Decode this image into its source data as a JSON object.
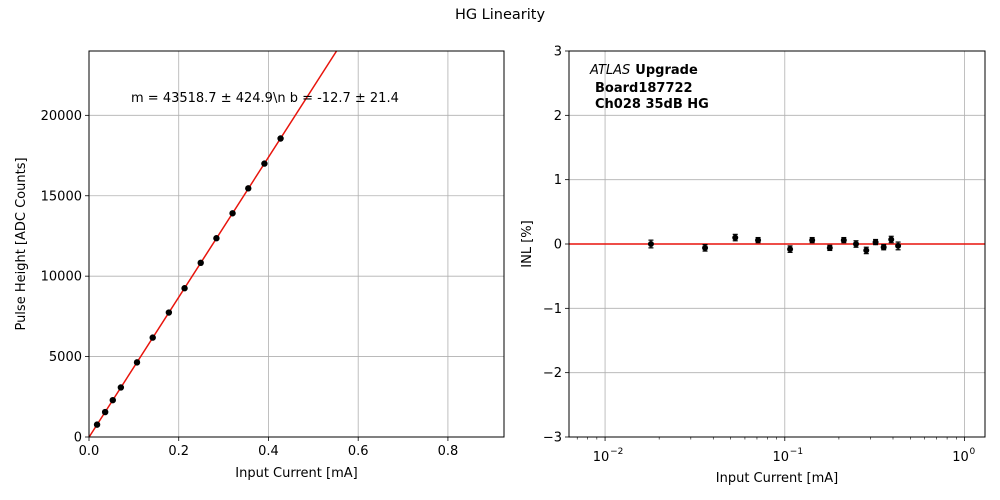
{
  "figure": {
    "title": "HG Linearity"
  },
  "chart_data": [
    {
      "type": "scatter",
      "xlabel": "Input Current [mA]",
      "ylabel": "Pulse Height [ADC Counts]",
      "xlim": [
        0,
        0.925
      ],
      "ylim": [
        0,
        24000
      ],
      "x_ticks": [
        0,
        0.2,
        0.4,
        0.6,
        0.8
      ],
      "x_tick_labels": [
        "0.0",
        "0.2",
        "0.4",
        "0.6",
        "0.8"
      ],
      "y_ticks": [
        0,
        5000,
        10000,
        15000,
        20000
      ],
      "y_tick_labels": [
        "0",
        "5000",
        "10000",
        "15000",
        "20000"
      ],
      "grid": true,
      "series": [
        {
          "x": [
            0.018,
            0.036,
            0.053,
            0.071,
            0.107,
            0.142,
            0.178,
            0.213,
            0.249,
            0.284,
            0.32,
            0.355,
            0.391,
            0.427
          ],
          "y": [
            770,
            1550,
            2290,
            3080,
            4640,
            6180,
            7740,
            9250,
            10830,
            12360,
            13910,
            15460,
            17000,
            18560
          ],
          "color": "#000000"
        }
      ],
      "fit_line": {
        "slope": 43518.7,
        "intercept": -12.7,
        "color": "#e8140c"
      },
      "annotation": "m = 43518.7 ± 424.9\\n b = -12.7 ± 21.4"
    },
    {
      "type": "scatter",
      "xlabel": "Input Current [mA]",
      "ylabel": "INL [%]",
      "x_scale": "log",
      "xlim": [
        0.0063,
        1.3
      ],
      "ylim": [
        -3,
        3
      ],
      "x_ticks": [
        0.01,
        0.1,
        1
      ],
      "x_tick_labels": [
        "10",
        "10",
        "10"
      ],
      "x_tick_exponents": [
        "−2",
        "−1",
        "0"
      ],
      "y_ticks": [
        -3,
        -2,
        -1,
        0,
        1,
        2,
        3
      ],
      "y_tick_labels": [
        "−3",
        "−2",
        "−1",
        "0",
        "1",
        "2",
        "3"
      ],
      "grid": true,
      "series": [
        {
          "x": [
            0.018,
            0.036,
            0.053,
            0.071,
            0.107,
            0.142,
            0.178,
            0.213,
            0.249,
            0.284,
            0.32,
            0.355,
            0.391,
            0.427
          ],
          "y": [
            0.0,
            -0.06,
            0.1,
            0.06,
            -0.08,
            0.06,
            -0.06,
            0.06,
            0.0,
            -0.1,
            0.03,
            -0.05,
            0.07,
            -0.03
          ],
          "error": [
            0.06,
            0.05,
            0.05,
            0.04,
            0.05,
            0.04,
            0.04,
            0.04,
            0.05,
            0.05,
            0.04,
            0.04,
            0.05,
            0.06
          ],
          "color": "#000000"
        }
      ],
      "reference_line": {
        "y": 0,
        "color": "#e8140c"
      },
      "label_italic": "ATLAS",
      "label_bold": "Upgrade",
      "label_lines": [
        "Board187722",
        "Ch028 35dB HG"
      ]
    }
  ]
}
